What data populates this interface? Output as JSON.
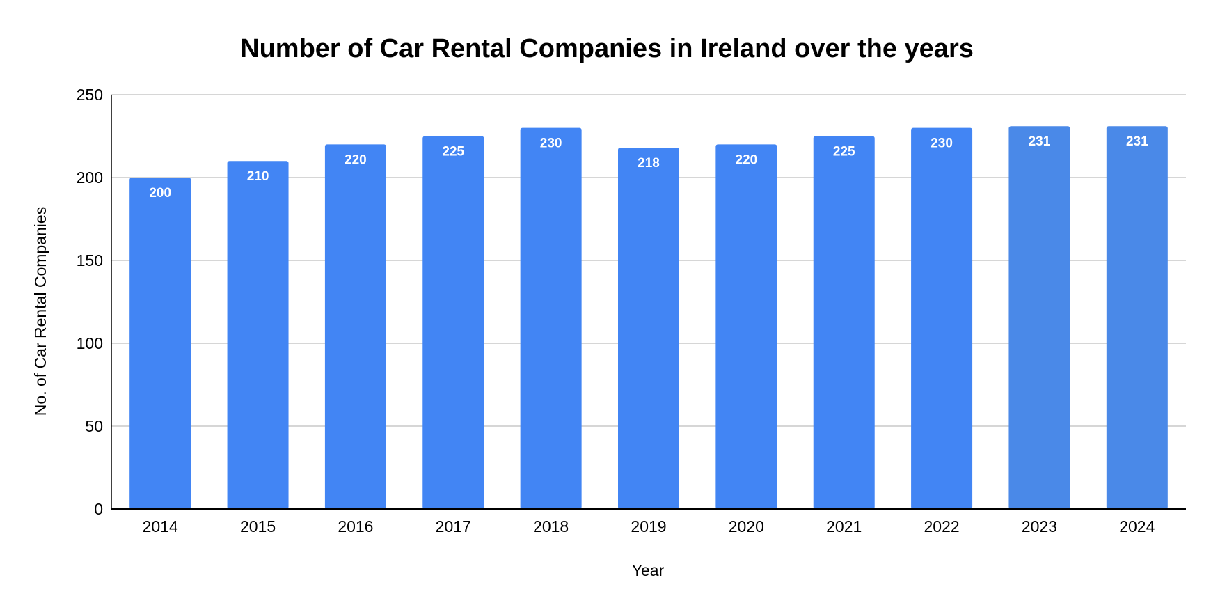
{
  "chart_data": {
    "type": "bar",
    "title": "Number of Car Rental Companies in Ireland over the years",
    "xlabel": "Year",
    "ylabel": "No. of Car Rental Companies",
    "categories": [
      "2014",
      "2015",
      "2016",
      "2017",
      "2018",
      "2019",
      "2020",
      "2021",
      "2022",
      "2023",
      "2024"
    ],
    "values": [
      200,
      210,
      220,
      225,
      230,
      218,
      220,
      225,
      230,
      231,
      231
    ],
    "data_labels": [
      "200",
      "210",
      "220",
      "225",
      "230",
      "218",
      "220",
      "225",
      "230",
      "231",
      "231"
    ],
    "ylim": [
      0,
      250
    ],
    "yticks": [
      0,
      50,
      100,
      150,
      200,
      250
    ],
    "ytick_labels": [
      "0",
      "50",
      "100",
      "150",
      "200",
      "250"
    ],
    "grid": true,
    "legend": "none",
    "colors": {
      "bar": "#4285f4",
      "bar_highlight": "#4a89e8",
      "grid": "#c8c8c8",
      "axis": "#000000",
      "data_label": "#ffffff"
    }
  }
}
